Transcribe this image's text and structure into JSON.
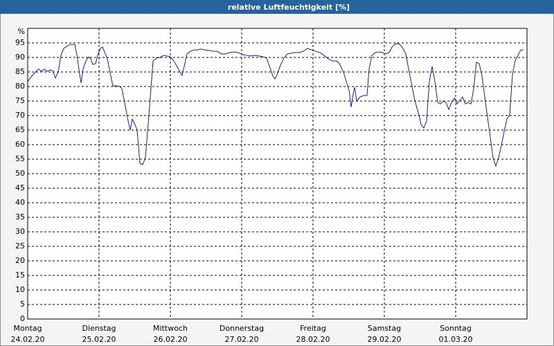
{
  "chart_data": {
    "type": "line",
    "title": "relative Luftfeuchtigkeit [%]",
    "y_unit": "%",
    "xlim": [
      0,
      7
    ],
    "ylim": [
      0,
      100
    ],
    "xticks": [
      {
        "value": 0,
        "label": "Montag",
        "date": "24.02.20"
      },
      {
        "value": 1,
        "label": "Dienstag",
        "date": "25.02.20"
      },
      {
        "value": 2,
        "label": "Mittwoch",
        "date": "26.02.20"
      },
      {
        "value": 3,
        "label": "Donnerstag",
        "date": "27.02.20"
      },
      {
        "value": 4,
        "label": "Freitag",
        "date": "28.02.20"
      },
      {
        "value": 5,
        "label": "Samstag",
        "date": "29.02.20"
      },
      {
        "value": 6,
        "label": "Sonntag",
        "date": "01.03.20"
      }
    ],
    "yticks": [
      0,
      5,
      10,
      15,
      20,
      25,
      30,
      35,
      40,
      45,
      50,
      55,
      60,
      65,
      70,
      75,
      80,
      85,
      90,
      95
    ],
    "grid": true,
    "series": [
      {
        "name": "relative Luftfeuchtigkeit",
        "color": "#1a1aa8",
        "x": [
          0,
          0.058,
          0.117,
          0.155,
          0.194,
          0.233,
          0.272,
          0.311,
          0.35,
          0.388,
          0.427,
          0.466,
          0.505,
          0.544,
          0.583,
          0.621,
          0.66,
          0.689,
          0.718,
          0.748,
          0.777,
          0.816,
          0.854,
          0.883,
          0.913,
          0.951,
          0.981,
          1.019,
          1.049,
          1.078,
          1.117,
          1.165,
          1.194,
          1.243,
          1.291,
          1.32,
          1.359,
          1.398,
          1.437,
          1.466,
          1.495,
          1.534,
          1.573,
          1.612,
          1.65,
          1.689,
          1.728,
          1.757,
          1.806,
          1.854,
          1.903,
          1.951,
          2,
          2.049,
          2.097,
          2.136,
          2.165,
          2.194,
          2.233,
          2.282,
          2.33,
          2.379,
          2.427,
          2.485,
          2.544,
          2.602,
          2.66,
          2.718,
          2.777,
          2.835,
          2.893,
          2.951,
          3.01,
          3.068,
          3.126,
          3.184,
          3.243,
          3.301,
          3.35,
          3.398,
          3.437,
          3.466,
          3.495,
          3.544,
          3.592,
          3.641,
          3.689,
          3.748,
          3.806,
          3.864,
          3.922,
          3.981,
          4.039,
          4.097,
          4.155,
          4.214,
          4.272,
          4.33,
          4.369,
          4.427,
          4.466,
          4.505,
          4.534,
          4.553,
          4.583,
          4.612,
          4.66,
          4.709,
          4.757,
          4.786,
          4.825,
          4.874,
          4.922,
          4.971,
          5.019,
          5.068,
          5.107,
          5.146,
          5.184,
          5.223,
          5.262,
          5.301,
          5.34,
          5.379,
          5.427,
          5.476,
          5.515,
          5.553,
          5.592,
          5.631,
          5.67,
          5.709,
          5.748,
          5.786,
          5.825,
          5.864,
          5.903,
          5.942,
          5.981,
          6.019,
          6.058,
          6.097,
          6.136,
          6.175,
          6.214,
          6.252,
          6.291,
          6.33,
          6.369,
          6.408,
          6.447,
          6.485,
          6.524,
          6.563,
          6.602,
          6.641,
          6.68,
          6.718,
          6.757,
          6.796,
          6.835,
          6.874,
          6.913,
          6.951
        ],
        "values": [
          81.7,
          83.6,
          85.2,
          86,
          85.2,
          86,
          85.2,
          85.7,
          85.5,
          82.9,
          85,
          90.7,
          93.1,
          93.8,
          94.3,
          94.5,
          94.5,
          91,
          86,
          81.2,
          86,
          88.8,
          90.2,
          89.5,
          87.6,
          87.9,
          90.7,
          93.1,
          93.6,
          91.9,
          89.5,
          83.6,
          80.2,
          80.2,
          80,
          79.3,
          74.5,
          69.3,
          65,
          68.8,
          67.4,
          65,
          53.6,
          53.1,
          55.5,
          66.9,
          79.3,
          88.8,
          89.8,
          90,
          90.7,
          90.5,
          90.2,
          88.8,
          86.7,
          85,
          83.8,
          86.9,
          91.2,
          92.1,
          92.6,
          92.6,
          92.9,
          92.6,
          92.4,
          92.1,
          92.1,
          91.2,
          91.2,
          91.7,
          91.9,
          91.7,
          91,
          90.7,
          90.5,
          90.7,
          90.5,
          90.2,
          89.8,
          86.4,
          83.6,
          82.6,
          84,
          87.4,
          89.8,
          91.2,
          91.4,
          91.7,
          91.7,
          92.1,
          93.1,
          92.6,
          92.1,
          91.7,
          90.7,
          89.5,
          88.8,
          88.8,
          87.9,
          85,
          81.7,
          78.8,
          72.9,
          76,
          79.8,
          75,
          76.4,
          76.9,
          76.9,
          86,
          90.7,
          91.7,
          91.9,
          91.7,
          91.2,
          91.7,
          93.6,
          94.5,
          94.8,
          94.3,
          93.1,
          91.2,
          86,
          81.2,
          75.2,
          71,
          66.9,
          65.7,
          68.1,
          81.7,
          86.9,
          81.7,
          74.5,
          74,
          75,
          74.5,
          72.1,
          74.5,
          76,
          74,
          75.2,
          76.4,
          74,
          74.5,
          74,
          79.3,
          88.3,
          87.9,
          83.6,
          76.4,
          69.3,
          62.6,
          55.5,
          52.6,
          55.5,
          59.8,
          64.5,
          68.8,
          70.2,
          84,
          89,
          90.7,
          92.6,
          92.6
        ]
      }
    ]
  }
}
